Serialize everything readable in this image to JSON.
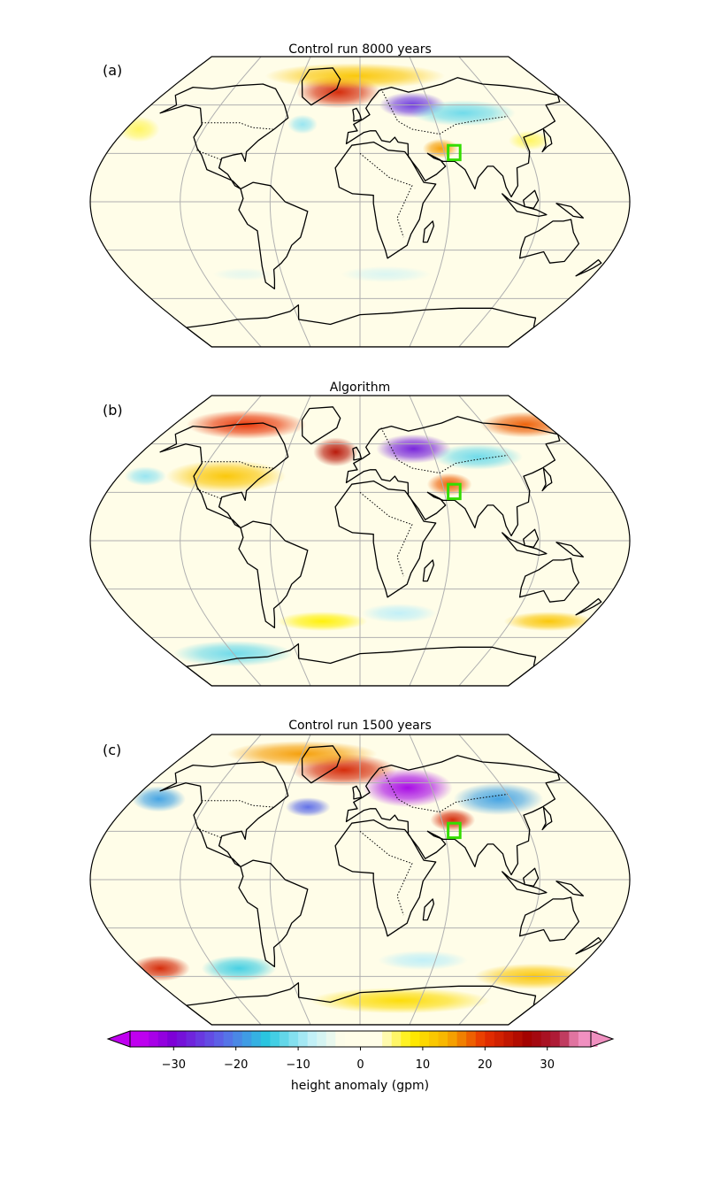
{
  "panels": [
    {
      "label": "(a)",
      "title": "Control run 8000 years",
      "blobs": [
        {
          "lon": -20,
          "lat": 68,
          "rx": 28,
          "ry": 10,
          "v": 22
        },
        {
          "lon": -5,
          "lat": 78,
          "rx": 60,
          "ry": 8,
          "v": 12
        },
        {
          "lon": 45,
          "lat": 60,
          "rx": 22,
          "ry": 8,
          "v": -26
        },
        {
          "lon": 85,
          "lat": 55,
          "rx": 35,
          "ry": 8,
          "v": -12
        },
        {
          "lon": -45,
          "lat": 48,
          "rx": 10,
          "ry": 6,
          "v": -10
        },
        {
          "lon": 58,
          "lat": 33,
          "rx": 12,
          "ry": 6,
          "v": 15
        },
        {
          "lon": 125,
          "lat": 38,
          "rx": 14,
          "ry": 6,
          "v": 6
        },
        {
          "lon": -170,
          "lat": 45,
          "rx": 14,
          "ry": 8,
          "v": 6
        },
        {
          "lon": 20,
          "lat": -45,
          "rx": 30,
          "ry": 5,
          "v": -6
        },
        {
          "lon": -90,
          "lat": -45,
          "rx": 20,
          "ry": 4,
          "v": -5
        }
      ]
    },
    {
      "label": "(b)",
      "title": "Algorithm",
      "blobs": [
        {
          "lon": -20,
          "lat": 55,
          "rx": 15,
          "ry": 9,
          "v": 25
        },
        {
          "lon": -110,
          "lat": 72,
          "rx": 40,
          "ry": 9,
          "v": 20
        },
        {
          "lon": 160,
          "lat": 72,
          "rx": 30,
          "ry": 8,
          "v": 18
        },
        {
          "lon": -100,
          "lat": 40,
          "rx": 40,
          "ry": 10,
          "v": 12
        },
        {
          "lon": 45,
          "lat": 57,
          "rx": 25,
          "ry": 9,
          "v": -28
        },
        {
          "lon": 95,
          "lat": 52,
          "rx": 30,
          "ry": 8,
          "v": -12
        },
        {
          "lon": 65,
          "lat": 35,
          "rx": 15,
          "ry": 7,
          "v": 18
        },
        {
          "lon": -160,
          "lat": 40,
          "rx": 14,
          "ry": 6,
          "v": -10
        },
        {
          "lon": 30,
          "lat": -45,
          "rx": 25,
          "ry": 6,
          "v": -8
        },
        {
          "lon": -120,
          "lat": -70,
          "rx": 40,
          "ry": 8,
          "v": -12
        },
        {
          "lon": 150,
          "lat": -50,
          "rx": 30,
          "ry": 6,
          "v": 12
        },
        {
          "lon": -30,
          "lat": -50,
          "rx": 30,
          "ry": 6,
          "v": 8
        }
      ]
    },
    {
      "label": "(c)",
      "title": "Control run 1500 years",
      "blobs": [
        {
          "lon": -15,
          "lat": 68,
          "rx": 35,
          "ry": 10,
          "v": 22
        },
        {
          "lon": -60,
          "lat": 78,
          "rx": 50,
          "ry": 8,
          "v": 15
        },
        {
          "lon": 40,
          "lat": 57,
          "rx": 30,
          "ry": 12,
          "v": -33
        },
        {
          "lon": 110,
          "lat": 50,
          "rx": 30,
          "ry": 10,
          "v": -18
        },
        {
          "lon": -40,
          "lat": 45,
          "rx": 15,
          "ry": 6,
          "v": -22
        },
        {
          "lon": 68,
          "lat": 37,
          "rx": 15,
          "ry": 7,
          "v": 22
        },
        {
          "lon": -160,
          "lat": 50,
          "rx": 18,
          "ry": 8,
          "v": -18
        },
        {
          "lon": -165,
          "lat": -55,
          "rx": 20,
          "ry": 8,
          "v": 22
        },
        {
          "lon": -100,
          "lat": -55,
          "rx": 25,
          "ry": 8,
          "v": -14
        },
        {
          "lon": 150,
          "lat": -60,
          "rx": 40,
          "ry": 8,
          "v": 12
        },
        {
          "lon": 50,
          "lat": -50,
          "rx": 30,
          "ry": 6,
          "v": -8
        },
        {
          "lon": 40,
          "lat": -75,
          "rx": 60,
          "ry": 8,
          "v": 10
        }
      ]
    }
  ],
  "colorbar": {
    "label": "height anomaly (gpm)",
    "min": -37,
    "max": 37,
    "ticks": [
      "−30",
      "−20",
      "−10",
      "0",
      "10",
      "20",
      "30"
    ],
    "tick_values": [
      -30,
      -20,
      -10,
      0,
      10,
      20,
      30
    ],
    "stops": [
      {
        "v": -35,
        "c": "#c000f0"
      },
      {
        "v": -30,
        "c": "#7a00d6"
      },
      {
        "v": -22,
        "c": "#5a6ae8"
      },
      {
        "v": -15,
        "c": "#28c8e0"
      },
      {
        "v": -8,
        "c": "#bfeff8"
      },
      {
        "v": -3,
        "c": "#fffde8"
      },
      {
        "v": 3,
        "c": "#fffde8"
      },
      {
        "v": 8,
        "c": "#fff000"
      },
      {
        "v": 14,
        "c": "#f7b000"
      },
      {
        "v": 20,
        "c": "#e83000"
      },
      {
        "v": 27,
        "c": "#a00000"
      },
      {
        "v": 32,
        "c": "#b02040"
      },
      {
        "v": 35,
        "c": "#f090c0"
      }
    ],
    "under_color": "#c000f0",
    "over_color": "#f090c0"
  },
  "target_box_color": "#33dd00",
  "target_box_label": "target-region"
}
